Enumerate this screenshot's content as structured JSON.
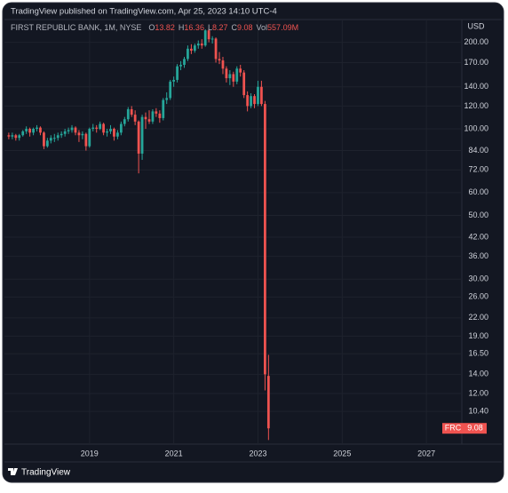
{
  "header": "TradingView published on TradingView.com, Apr 25, 2023 14:10 UTC-4",
  "footer": "TradingView",
  "chart_data": {
    "type": "candlestick",
    "title": "FIRST REPUBLIC BANK, 1M, NYSE",
    "symbol": "FRC",
    "y_axis_label": "USD",
    "ohlc_labels": [
      "O",
      "H",
      "L",
      "C",
      "Vol"
    ],
    "volume_label": "557.09M",
    "up_color": "#26a69a",
    "down_color": "#ef5350",
    "log_scale": true,
    "grid": true,
    "x": [
      2017.083,
      2017.167,
      2017.25,
      2017.333,
      2017.417,
      2017.5,
      2017.583,
      2017.667,
      2017.75,
      2017.833,
      2017.917,
      2018.0,
      2018.083,
      2018.167,
      2018.25,
      2018.333,
      2018.417,
      2018.5,
      2018.583,
      2018.667,
      2018.75,
      2018.833,
      2018.917,
      2019.0,
      2019.083,
      2019.167,
      2019.25,
      2019.333,
      2019.417,
      2019.5,
      2019.583,
      2019.667,
      2019.75,
      2019.833,
      2019.917,
      2020.0,
      2020.083,
      2020.167,
      2020.25,
      2020.333,
      2020.417,
      2020.5,
      2020.583,
      2020.667,
      2020.75,
      2020.833,
      2020.917,
      2021.0,
      2021.083,
      2021.167,
      2021.25,
      2021.333,
      2021.417,
      2021.5,
      2021.583,
      2021.667,
      2021.75,
      2021.833,
      2021.917,
      2022.0,
      2022.083,
      2022.167,
      2022.25,
      2022.333,
      2022.417,
      2022.5,
      2022.583,
      2022.667,
      2022.75,
      2022.833,
      2022.917,
      2023.0,
      2023.083,
      2023.167,
      2023.25
    ],
    "open": [
      95,
      94,
      95,
      93,
      95,
      98,
      100,
      97,
      100,
      101,
      97,
      87,
      91,
      93,
      93,
      95,
      96,
      98,
      99,
      101,
      97,
      95,
      96,
      87,
      100,
      101,
      100,
      104,
      97,
      98,
      100,
      94,
      97,
      104,
      108,
      117,
      112,
      106,
      82,
      110,
      108,
      106,
      115,
      113,
      109,
      126,
      128,
      146,
      148,
      165,
      167,
      175,
      190,
      187,
      195,
      198,
      195,
      220,
      205,
      206,
      175,
      173,
      162,
      150,
      155,
      146,
      162,
      157,
      131,
      120,
      130,
      122,
      140,
      122,
      13.82
    ],
    "high": [
      97,
      97,
      96,
      96,
      99,
      102,
      101,
      101,
      103,
      102,
      98,
      93,
      95,
      96,
      97,
      98,
      100,
      101,
      103,
      102,
      99,
      98,
      97,
      101,
      104,
      103,
      106,
      105,
      100,
      103,
      101,
      99,
      106,
      110,
      119,
      120,
      116,
      107,
      112,
      114,
      116,
      117,
      118,
      116,
      128,
      134,
      148,
      152,
      168,
      172,
      178,
      195,
      197,
      198,
      203,
      205,
      222,
      223,
      210,
      208,
      185,
      178,
      165,
      160,
      158,
      165,
      167,
      160,
      135,
      133,
      132,
      147,
      147,
      125,
      16.36
    ],
    "low": [
      92,
      92,
      91,
      91,
      94,
      96,
      94,
      95,
      98,
      95,
      85,
      86,
      89,
      90,
      91,
      93,
      94,
      96,
      97,
      95,
      90,
      92,
      84,
      86,
      98,
      97,
      99,
      95,
      94,
      96,
      91,
      92,
      95,
      102,
      106,
      110,
      103,
      70,
      78,
      100,
      104,
      104,
      110,
      105,
      107,
      122,
      126,
      140,
      145,
      160,
      163,
      172,
      182,
      184,
      190,
      190,
      193,
      200,
      198,
      170,
      168,
      155,
      145,
      142,
      140,
      143,
      152,
      128,
      115,
      118,
      118,
      120,
      120,
      12.3,
      8.27
    ],
    "close": [
      94,
      95,
      93,
      95,
      98,
      100,
      97,
      100,
      101,
      97,
      87,
      91,
      93,
      93,
      95,
      96,
      98,
      99,
      101,
      97,
      95,
      96,
      87,
      100,
      101,
      100,
      104,
      97,
      98,
      100,
      94,
      97,
      104,
      108,
      117,
      112,
      106,
      82,
      110,
      108,
      106,
      115,
      113,
      109,
      126,
      128,
      146,
      148,
      165,
      167,
      175,
      190,
      187,
      195,
      198,
      195,
      220,
      205,
      206,
      175,
      173,
      162,
      150,
      155,
      146,
      162,
      157,
      131,
      120,
      130,
      122,
      140,
      122,
      14,
      9.08
    ],
    "xlim": [
      2016.98,
      2027.84
    ],
    "xticks": [
      2019,
      2021,
      2023,
      2025,
      2027
    ],
    "ylim": [
      8,
      240
    ],
    "yticks": [
      {
        "value": 200,
        "label": "200.00"
      },
      {
        "value": 170,
        "label": "170.00"
      },
      {
        "value": 140,
        "label": "140.00"
      },
      {
        "value": 120,
        "label": "120.00"
      },
      {
        "value": 100,
        "label": "100.00"
      },
      {
        "value": 84,
        "label": "84.00"
      },
      {
        "value": 72,
        "label": "72.00"
      },
      {
        "value": 60,
        "label": "60.00"
      },
      {
        "value": 50,
        "label": "50.00"
      },
      {
        "value": 42,
        "label": "42.00"
      },
      {
        "value": 36,
        "label": "36.00"
      },
      {
        "value": 30,
        "label": "30.00"
      },
      {
        "value": 26,
        "label": "26.00"
      },
      {
        "value": 22,
        "label": "22.00"
      },
      {
        "value": 19,
        "label": "19.00"
      },
      {
        "value": 16.5,
        "label": "16.50"
      },
      {
        "value": 14,
        "label": "14.00"
      },
      {
        "value": 12,
        "label": "12.00"
      },
      {
        "value": 10.4,
        "label": "10.40"
      }
    ]
  }
}
